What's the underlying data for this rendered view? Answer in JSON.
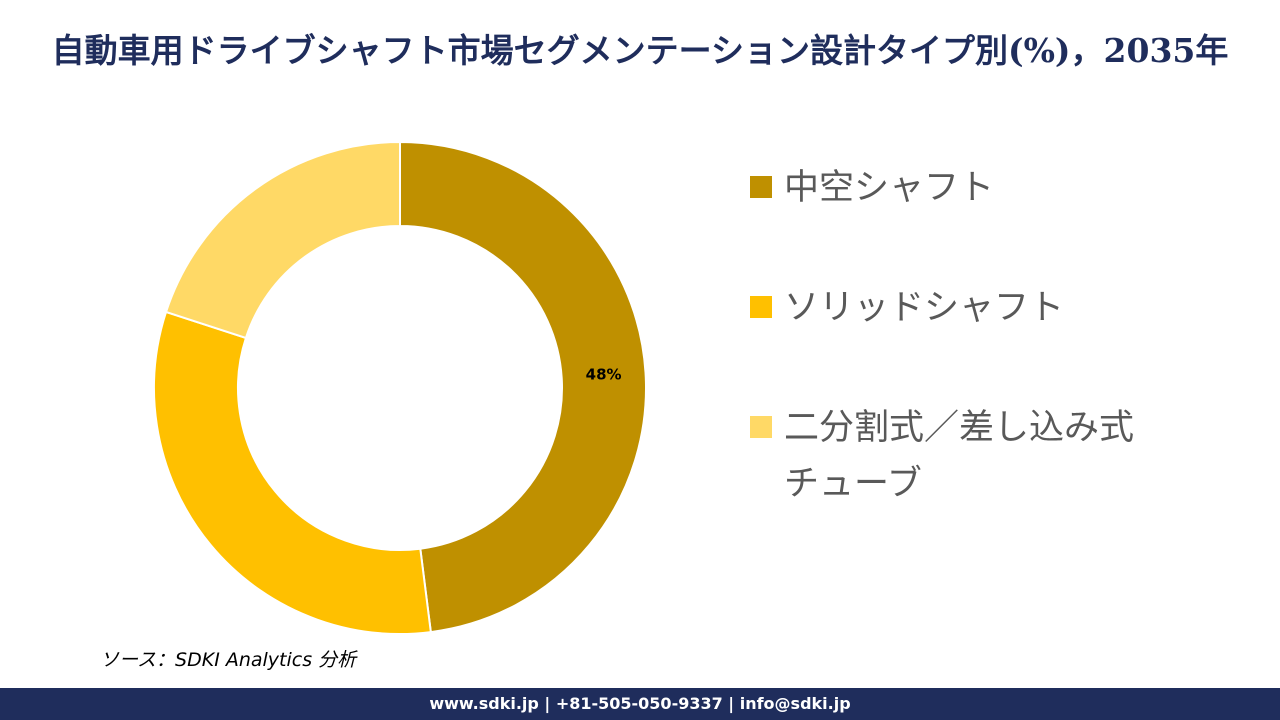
{
  "chart_data": {
    "type": "donut",
    "title": "自動車用ドライブシャフト市場セグメンテーション設計タイプ別(%)，2035年",
    "categories": [
      "中空シャフト",
      "ソリッドシャフト",
      "二分割式／差し込み式チューブ"
    ],
    "values": [
      48,
      32,
      20
    ],
    "value_labels": [
      "48%",
      null,
      null
    ],
    "colors": [
      "#bf9000",
      "#ffc000",
      "#ffd966"
    ],
    "source": "ソース：SDKI Analytics 分析"
  },
  "footer": "www.sdki.jp | +81-505-050-9337 | info@sdki.jp"
}
